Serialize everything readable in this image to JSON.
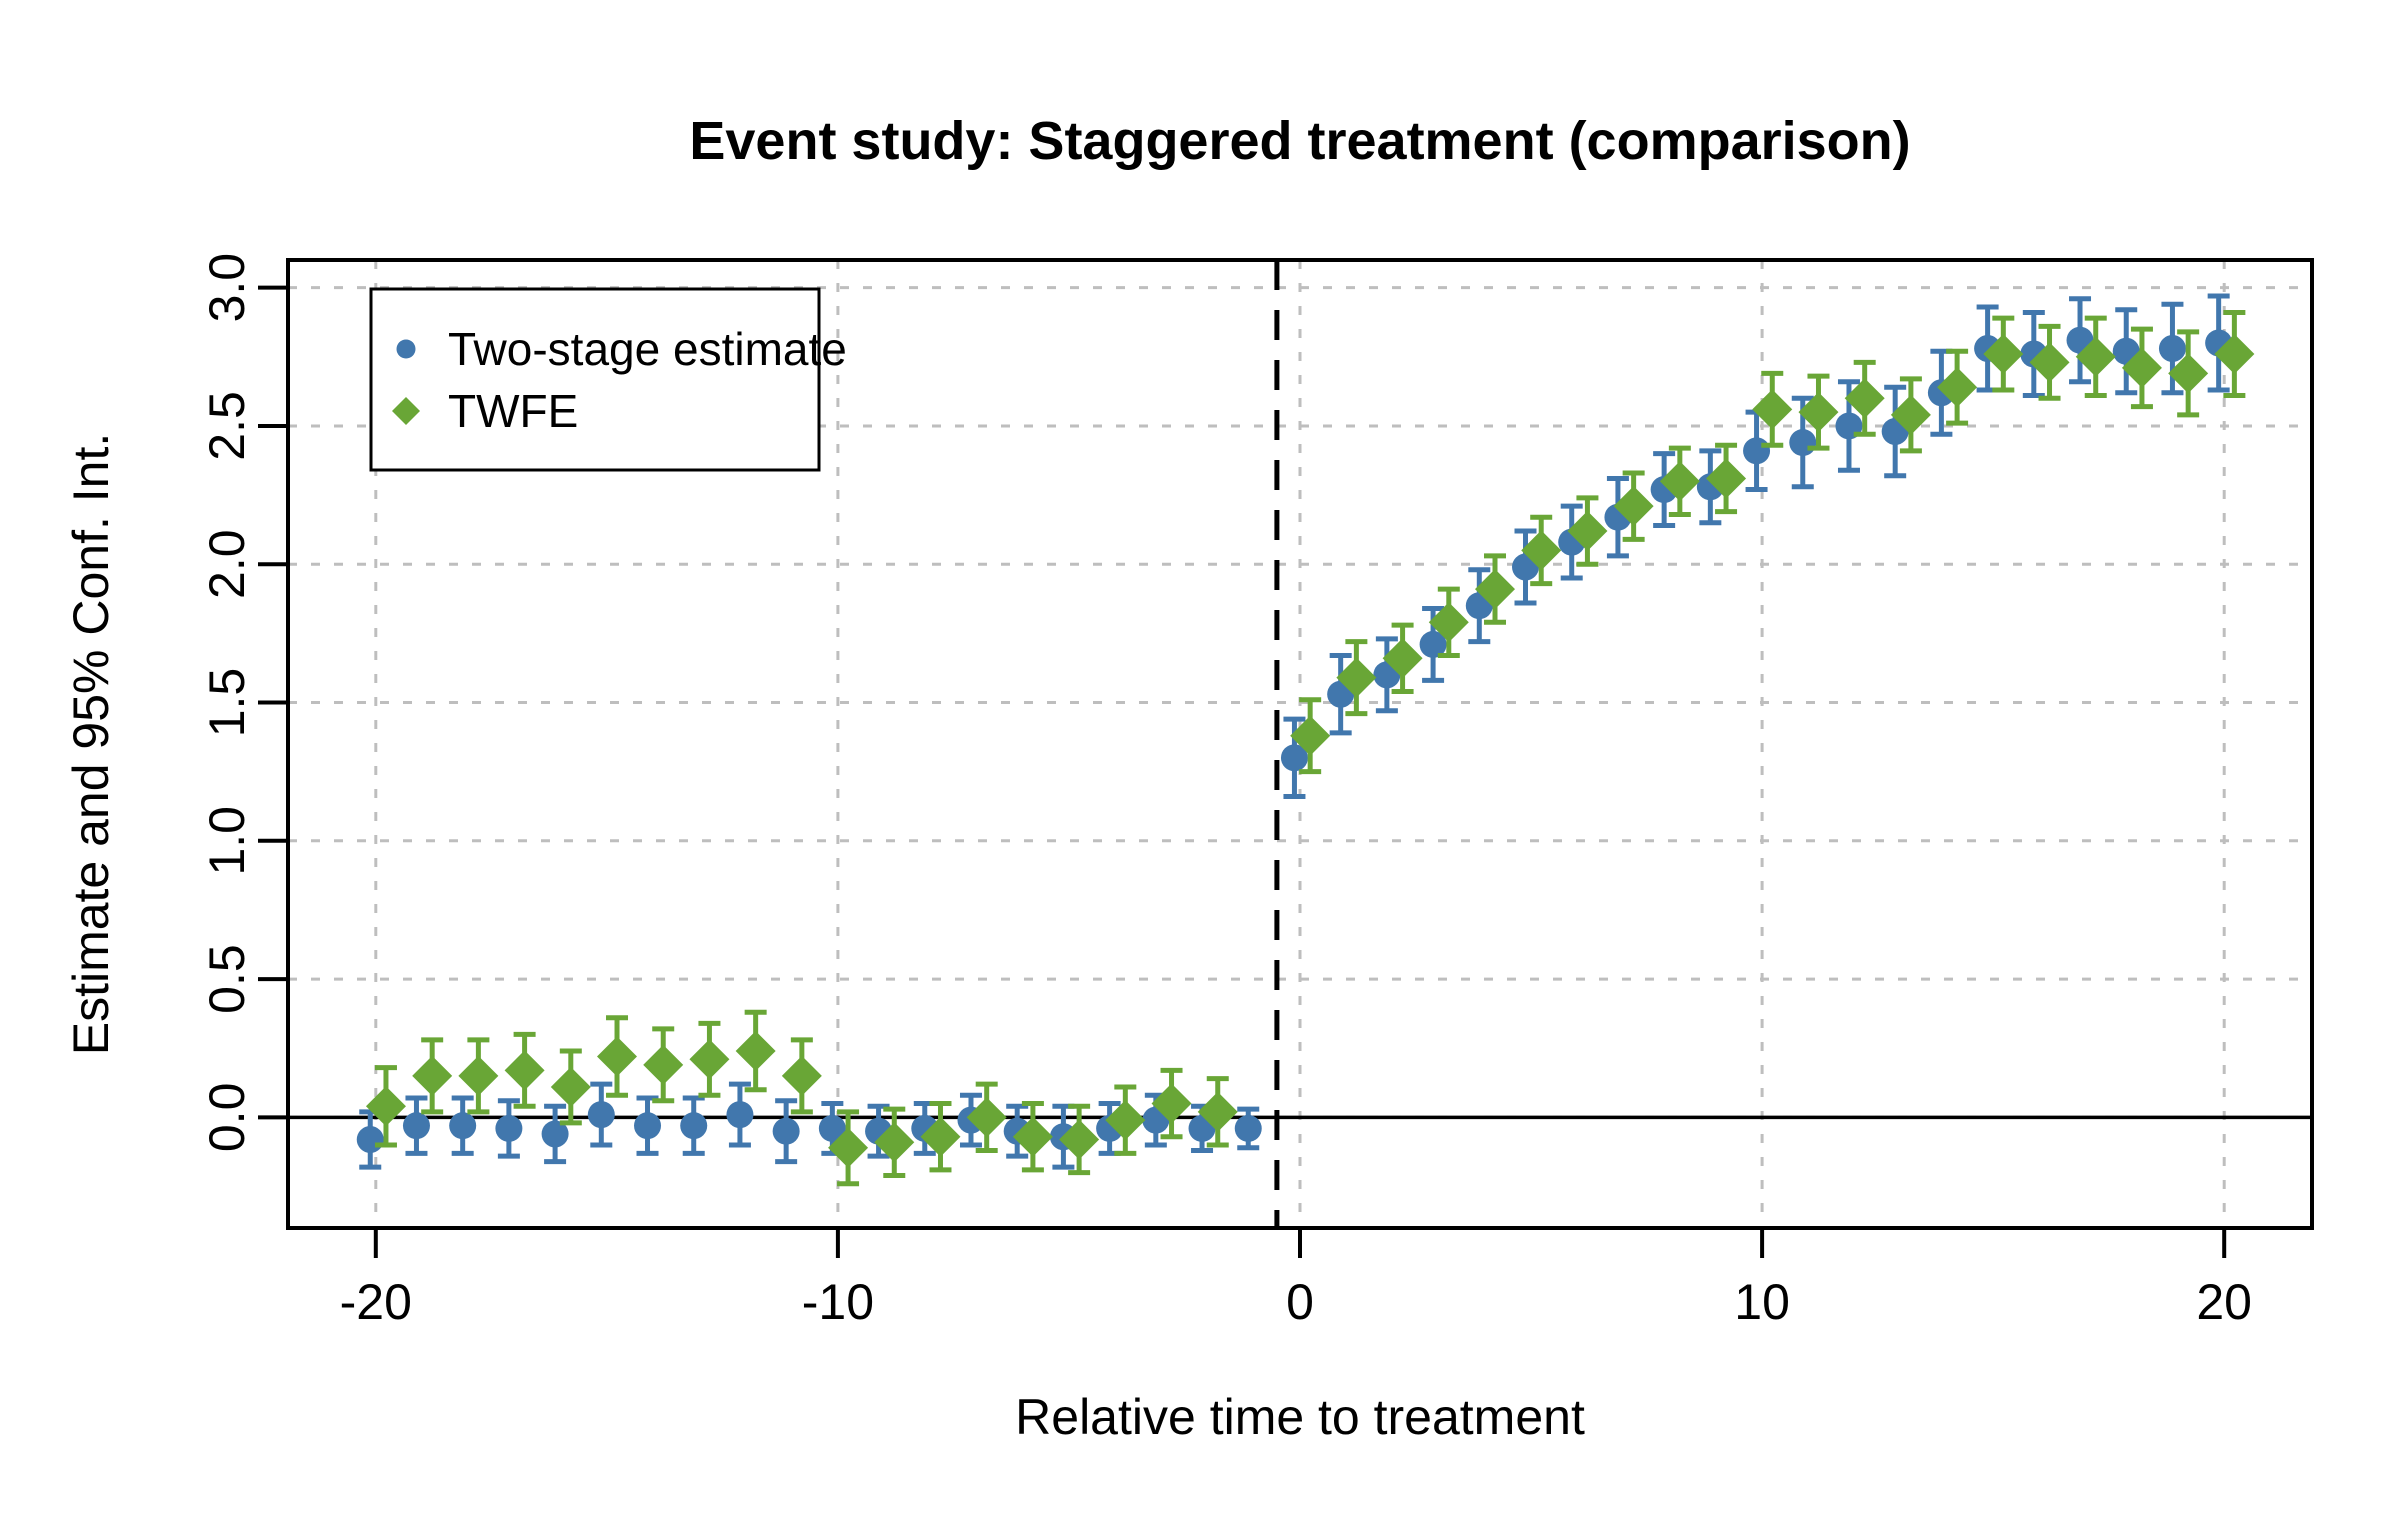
{
  "figure": {
    "background": "#ffffff",
    "accent_blue": "#4177AD",
    "accent_green": "#69A636",
    "grid_color": "#BEBEBE",
    "axis_color": "#000000"
  },
  "chart_data": {
    "type": "scatter",
    "title": "Event study: Staggered treatment (comparison)",
    "xlabel": "Relative time to treatment",
    "ylabel": "Estimate and 95% Conf. Int.",
    "xlim": [
      -21.9,
      21.9
    ],
    "ylim": [
      -0.4,
      3.1
    ],
    "x_ticks": [
      -20,
      -10,
      0,
      10,
      20
    ],
    "x_tick_labels": [
      "-20",
      "-10",
      "0",
      "10",
      "20"
    ],
    "y_ticks": [
      0.0,
      0.5,
      1.0,
      1.5,
      2.0,
      2.5,
      3.0
    ],
    "y_tick_labels": [
      "0.0",
      "0.5",
      "1.0",
      "1.5",
      "2.0",
      "2.5",
      "3.0"
    ],
    "grid": true,
    "zero_line_y": 0,
    "reference_line_x": -0.5,
    "legend": {
      "position": "top-left",
      "items": [
        {
          "label": "Two-stage estimate",
          "marker": "circle",
          "color": "#4177AD"
        },
        {
          "label": "TWFE",
          "marker": "diamond",
          "color": "#69A636"
        }
      ]
    },
    "series": [
      {
        "name": "Two-stage estimate",
        "marker": "circle",
        "color": "#4177AD",
        "x_offset": -0.12,
        "x": [
          -20,
          -19,
          -18,
          -17,
          -16,
          -15,
          -14,
          -13,
          -12,
          -11,
          -10,
          -9,
          -8,
          -7,
          -6,
          -5,
          -4,
          -3,
          -2,
          -1,
          0,
          1,
          2,
          3,
          4,
          5,
          6,
          7,
          8,
          9,
          10,
          11,
          12,
          13,
          14,
          15,
          16,
          17,
          18,
          19,
          20
        ],
        "y": [
          -0.08,
          -0.03,
          -0.03,
          -0.04,
          -0.06,
          0.01,
          -0.03,
          -0.03,
          0.01,
          -0.05,
          -0.04,
          -0.05,
          -0.04,
          -0.01,
          -0.05,
          -0.07,
          -0.04,
          -0.01,
          -0.04,
          -0.04,
          1.3,
          1.53,
          1.6,
          1.71,
          1.85,
          1.99,
          2.08,
          2.17,
          2.27,
          2.28,
          2.41,
          2.44,
          2.5,
          2.48,
          2.62,
          2.78,
          2.76,
          2.81,
          2.77,
          2.78,
          2.8
        ],
        "ci": [
          0.1,
          0.1,
          0.1,
          0.1,
          0.1,
          0.11,
          0.1,
          0.1,
          0.11,
          0.11,
          0.09,
          0.09,
          0.09,
          0.09,
          0.09,
          0.11,
          0.09,
          0.09,
          0.08,
          0.07,
          0.14,
          0.14,
          0.13,
          0.13,
          0.13,
          0.13,
          0.13,
          0.14,
          0.13,
          0.13,
          0.14,
          0.16,
          0.16,
          0.16,
          0.15,
          0.15,
          0.15,
          0.15,
          0.15,
          0.16,
          0.17
        ]
      },
      {
        "name": "TWFE",
        "marker": "diamond",
        "color": "#69A636",
        "x_offset": 0.22,
        "x": [
          -20,
          -19,
          -18,
          -17,
          -16,
          -15,
          -14,
          -13,
          -12,
          -11,
          -10,
          -9,
          -8,
          -7,
          -6,
          -5,
          -4,
          -3,
          -2,
          0,
          1,
          2,
          3,
          4,
          5,
          6,
          7,
          8,
          9,
          10,
          11,
          12,
          13,
          14,
          15,
          16,
          17,
          18,
          19,
          20
        ],
        "y": [
          0.04,
          0.15,
          0.15,
          0.17,
          0.11,
          0.22,
          0.19,
          0.21,
          0.24,
          0.15,
          -0.11,
          -0.09,
          -0.07,
          0.0,
          -0.07,
          -0.08,
          -0.01,
          0.05,
          0.02,
          1.38,
          1.59,
          1.66,
          1.79,
          1.91,
          2.05,
          2.12,
          2.21,
          2.3,
          2.31,
          2.56,
          2.55,
          2.6,
          2.54,
          2.64,
          2.76,
          2.73,
          2.75,
          2.71,
          2.69,
          2.76
        ],
        "ci": [
          0.14,
          0.13,
          0.13,
          0.13,
          0.13,
          0.14,
          0.13,
          0.13,
          0.14,
          0.13,
          0.13,
          0.12,
          0.12,
          0.12,
          0.12,
          0.12,
          0.12,
          0.12,
          0.12,
          0.13,
          0.13,
          0.12,
          0.12,
          0.12,
          0.12,
          0.12,
          0.12,
          0.12,
          0.12,
          0.13,
          0.13,
          0.13,
          0.13,
          0.13,
          0.13,
          0.13,
          0.14,
          0.14,
          0.15,
          0.15
        ]
      }
    ]
  }
}
